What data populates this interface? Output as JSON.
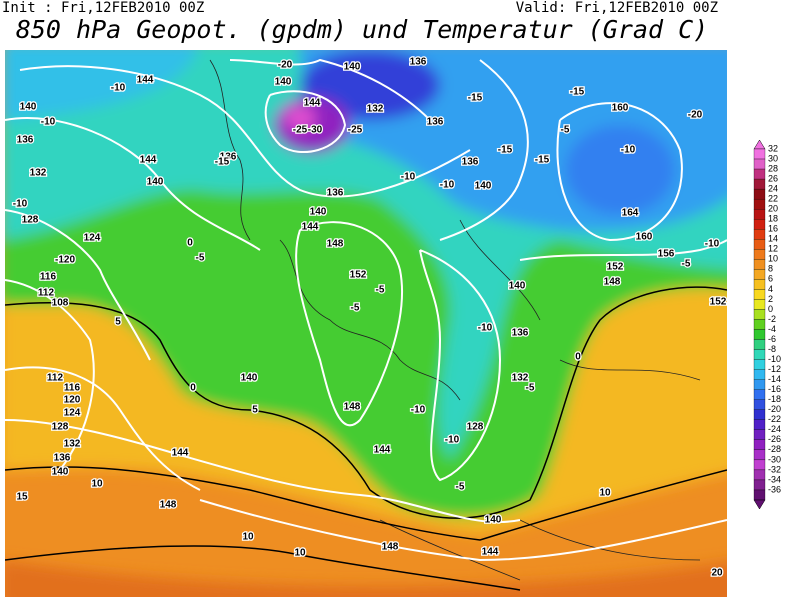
{
  "header": {
    "init": "Init : Fri,12FEB2010 00Z",
    "valid": "Valid: Fri,12FEB2010 00Z",
    "title": "850 hPa Geopot. (gpdm) und Temperatur (Grad C)"
  },
  "legend": {
    "labels": [
      32,
      30,
      28,
      26,
      24,
      22,
      20,
      18,
      16,
      14,
      12,
      10,
      8,
      6,
      4,
      2,
      0,
      -2,
      -4,
      -6,
      -8,
      -10,
      -12,
      -14,
      -16,
      -18,
      -20,
      -22,
      -24,
      -26,
      -28,
      -30,
      -32,
      -34,
      -36
    ],
    "colors": [
      "#f070e0",
      "#e060c8",
      "#c03080",
      "#a01838",
      "#8c0c14",
      "#a01010",
      "#b81414",
      "#d02010",
      "#e03c10",
      "#e85c14",
      "#ee7a1c",
      "#f09020",
      "#f4a824",
      "#f6c020",
      "#f8d820",
      "#e8e820",
      "#a8e020",
      "#60d020",
      "#30c830",
      "#30d080",
      "#30d8b8",
      "#30d0e0",
      "#30b8f0",
      "#3098f0",
      "#3070f0",
      "#3050e0",
      "#3030d0",
      "#5020c8",
      "#7020c0",
      "#9020c0",
      "#a830c8",
      "#c040d0",
      "#a030b0",
      "#802090",
      "#601070"
    ]
  },
  "map_labels": [
    "144",
    "140",
    "-10",
    "-10",
    "136",
    "132",
    "144",
    "140",
    "-10",
    "128",
    "124",
    "-120",
    "116",
    "112",
    "108",
    "5",
    "112",
    "116",
    "120",
    "124",
    "128",
    "132",
    "136",
    "140",
    "144",
    "148",
    "10",
    "15",
    "10",
    "10",
    "148",
    "144",
    "140",
    "-5",
    "-10",
    "132",
    "128",
    "-10",
    "148",
    "144",
    "140",
    "5",
    "0",
    "-5",
    "0",
    "152",
    "-5",
    "-5",
    "148",
    "144",
    "140",
    "136",
    "-10",
    "-10",
    "140",
    "-15",
    "136",
    "-15",
    "136",
    "132",
    "140",
    "136",
    "160",
    "164",
    "160",
    "156",
    "152",
    "148",
    "-20",
    "-10",
    "-5",
    "-15",
    "-10",
    "-5",
    "152",
    "0",
    "-5",
    "-10",
    "136",
    "140",
    "10",
    "-20",
    "140",
    "144",
    "-25",
    "-30",
    "-25",
    "136",
    "-15",
    "-15",
    "20"
  ]
}
